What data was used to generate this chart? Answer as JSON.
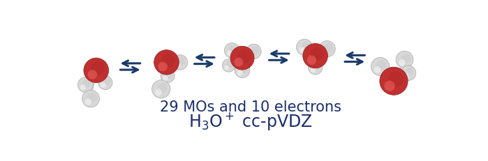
{
  "background_color": "#ffffff",
  "text_color": "#1b2d6b",
  "line1_main": "H",
  "line1_sub": "3",
  "line1_after": "O",
  "line1_sup": "+",
  "line1_end": " cc-pVDZ",
  "line2": "29 MOs and 10 electrons",
  "font_size_main": 17,
  "font_size_line2": 15,
  "arrow_color": "#1b3a6b",
  "oxygen_color": "#c13030",
  "oxygen_edge": "#8b1a1a",
  "hydrogen_color": "#d8d8d8",
  "hydrogen_edge": "#aaaaaa",
  "oxygen_highlight": "#e86060",
  "hydrogen_highlight": "#f5f5f5"
}
